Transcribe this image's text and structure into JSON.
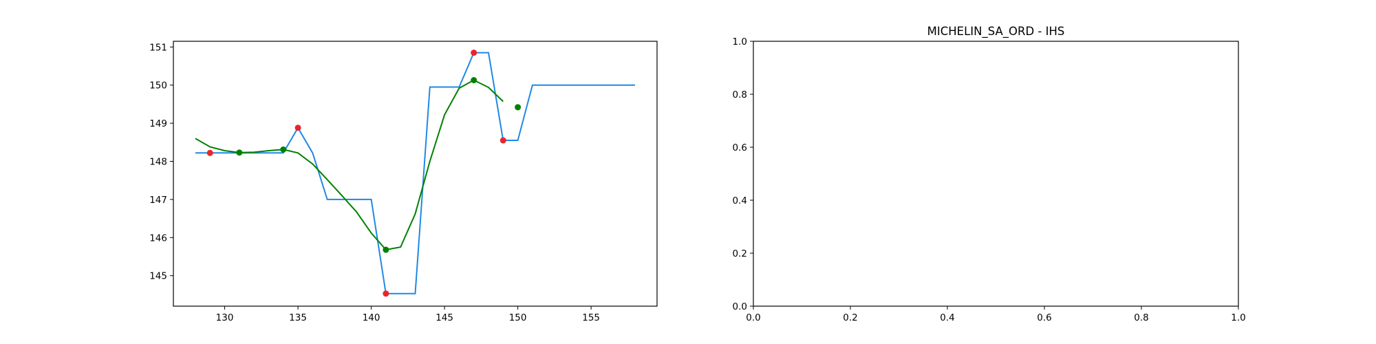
{
  "chart_data": [
    {
      "type": "line",
      "title": "",
      "xlabel": "",
      "ylabel": "",
      "xlim": [
        126.5,
        159.5
      ],
      "ylim": [
        144.2,
        151.15
      ],
      "xticks": [
        130,
        135,
        140,
        145,
        150,
        155
      ],
      "yticks": [
        145,
        146,
        147,
        148,
        149,
        150,
        151
      ],
      "grid": false,
      "series": [
        {
          "kind": "step-line",
          "color": "#1e88e5",
          "points": [
            [
              128,
              148.22
            ],
            [
              134,
              148.22
            ],
            [
              135,
              148.88
            ],
            [
              136,
              148.22
            ],
            [
              137,
              147.0
            ],
            [
              140,
              147.0
            ],
            [
              141,
              144.53
            ],
            [
              143,
              144.53
            ],
            [
              144,
              149.95
            ],
            [
              146,
              149.95
            ],
            [
              147,
              150.85
            ],
            [
              148,
              150.85
            ],
            [
              149,
              148.55
            ],
            [
              150,
              148.55
            ],
            [
              151,
              150.0
            ],
            [
              158,
              150.0
            ]
          ]
        },
        {
          "kind": "line",
          "color": "#008000",
          "points": [
            [
              128,
              148.6
            ],
            [
              129,
              148.38
            ],
            [
              130,
              148.28
            ],
            [
              131,
              148.23
            ],
            [
              132,
              148.24
            ],
            [
              133,
              148.28
            ],
            [
              134,
              148.31
            ],
            [
              135,
              148.22
            ],
            [
              136,
              147.93
            ],
            [
              137,
              147.52
            ],
            [
              138,
              147.1
            ],
            [
              139,
              146.67
            ],
            [
              140,
              146.12
            ],
            [
              141,
              145.68
            ],
            [
              142,
              145.75
            ],
            [
              143,
              146.62
            ],
            [
              144,
              148.0
            ],
            [
              145,
              149.22
            ],
            [
              146,
              149.92
            ],
            [
              147,
              150.13
            ],
            [
              148,
              149.94
            ],
            [
              149,
              149.57
            ]
          ]
        },
        {
          "kind": "scatter",
          "color": "#e8262b",
          "points": [
            [
              129,
              148.22
            ],
            [
              135,
              148.88
            ],
            [
              141,
              144.53
            ],
            [
              147,
              150.85
            ],
            [
              149,
              148.55
            ]
          ]
        },
        {
          "kind": "scatter",
          "color": "#008000",
          "points": [
            [
              131,
              148.23
            ],
            [
              134,
              148.31
            ],
            [
              141,
              145.68
            ],
            [
              147,
              150.13
            ],
            [
              150,
              149.42
            ]
          ]
        }
      ]
    },
    {
      "type": "line",
      "title": "MICHELIN_SA_ORD - IHS",
      "xlabel": "",
      "ylabel": "",
      "xlim": [
        0,
        1
      ],
      "ylim": [
        0,
        1
      ],
      "xticks": [
        "0.0",
        "0.2",
        "0.4",
        "0.6",
        "0.8",
        "1.0"
      ],
      "yticks": [
        "0.0",
        "0.2",
        "0.4",
        "0.6",
        "0.8",
        "1.0"
      ],
      "grid": false,
      "series": []
    }
  ]
}
